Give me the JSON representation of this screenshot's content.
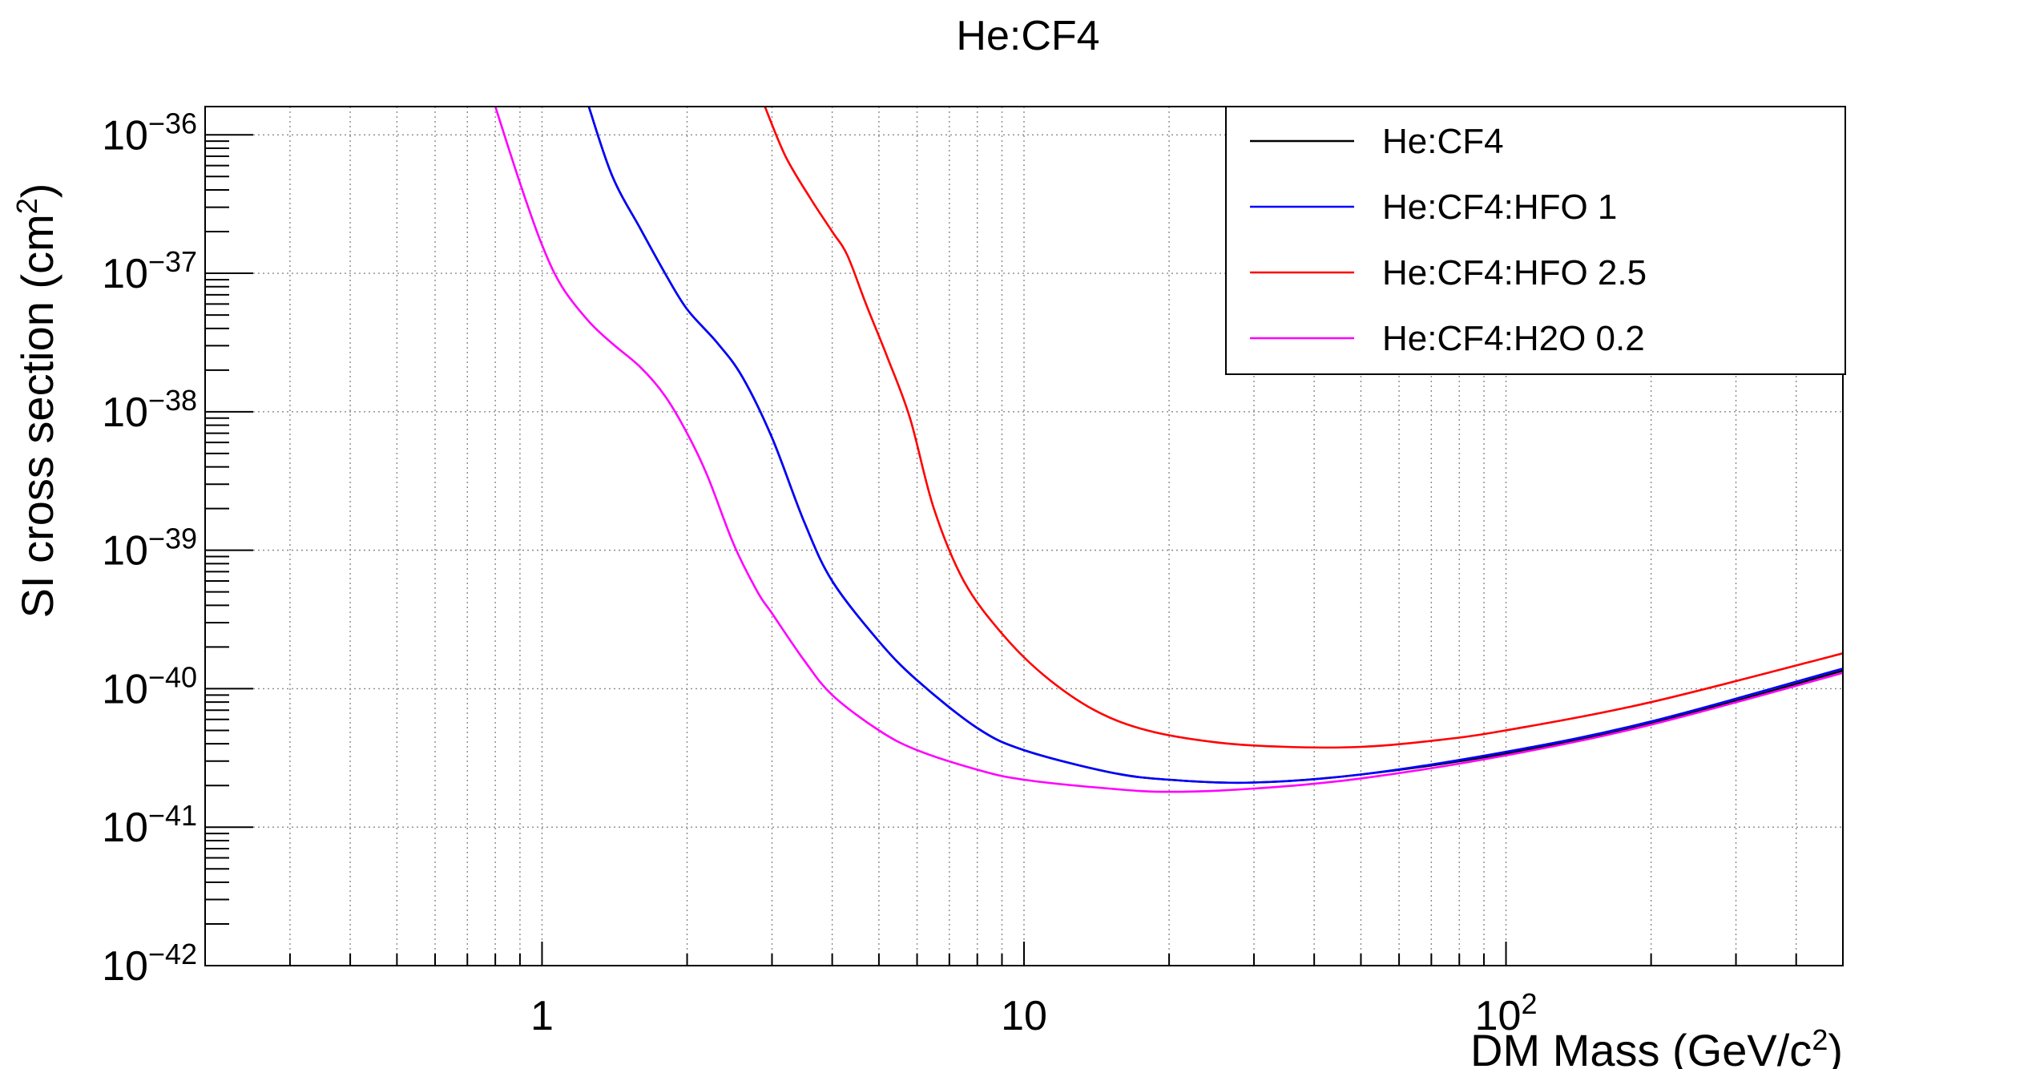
{
  "chart_data": {
    "type": "line",
    "title": "He:CF4",
    "xlabel": "DM Mass (GeV/c²)",
    "ylabel": "SI cross section (cm²)",
    "xscale": "log",
    "yscale": "log",
    "xlim": [
      0.2,
      500
    ],
    "ylim": [
      1e-42,
      1.6e-36
    ],
    "grid": true,
    "legend_position": "top-right",
    "x_ticks": [
      {
        "value": 1,
        "label": "1"
      },
      {
        "value": 10,
        "label": "10"
      },
      {
        "value": 100,
        "label": "10",
        "sup": "2"
      }
    ],
    "y_ticks": [
      {
        "value": 1e-42,
        "label": "10",
        "sup": "−42"
      },
      {
        "value": 1e-41,
        "label": "10",
        "sup": "−41"
      },
      {
        "value": 1e-40,
        "label": "10",
        "sup": "−40"
      },
      {
        "value": 1e-39,
        "label": "10",
        "sup": "−39"
      },
      {
        "value": 1e-38,
        "label": "10",
        "sup": "−38"
      },
      {
        "value": 1e-37,
        "label": "10",
        "sup": "−37"
      },
      {
        "value": 1e-36,
        "label": "10",
        "sup": "−36"
      }
    ],
    "series": [
      {
        "name": "He:CF4",
        "color": "#000000",
        "x": [
          1.25,
          1.4,
          1.6,
          1.8,
          2.0,
          2.3,
          2.6,
          3.0,
          3.5,
          4.0,
          5.0,
          6.0,
          8.0,
          10,
          15,
          20,
          30,
          50,
          100,
          200,
          500
        ],
        "y": [
          1.6e-36,
          5e-37,
          2.1e-37,
          1e-37,
          5.5e-38,
          3.2e-38,
          1.8e-38,
          6.5e-39,
          1.6e-39,
          6e-40,
          2.2e-40,
          1.15e-40,
          5.2e-41,
          3.6e-41,
          2.5e-41,
          2.2e-41,
          2.1e-41,
          2.4e-41,
          3.4e-41,
          5.6e-41,
          1.35e-40
        ]
      },
      {
        "name": "He:CF4:HFO 1",
        "color": "#0000ff",
        "x": [
          1.25,
          1.4,
          1.6,
          1.8,
          2.0,
          2.3,
          2.6,
          3.0,
          3.5,
          4.0,
          5.0,
          6.0,
          8.0,
          10,
          15,
          20,
          30,
          50,
          100,
          200,
          500
        ],
        "y": [
          1.6e-36,
          5e-37,
          2.1e-37,
          1e-37,
          5.5e-38,
          3.2e-38,
          1.8e-38,
          6.5e-39,
          1.6e-39,
          6e-40,
          2.2e-40,
          1.15e-40,
          5.2e-41,
          3.6e-41,
          2.5e-41,
          2.2e-41,
          2.1e-41,
          2.4e-41,
          3.5e-41,
          5.8e-41,
          1.4e-40
        ]
      },
      {
        "name": "He:CF4:HFO 2.5",
        "color": "#ff0000",
        "x": [
          2.9,
          3.2,
          3.6,
          4.0,
          4.3,
          4.7,
          5.2,
          5.8,
          6.5,
          7.5,
          9.0,
          11,
          14,
          18,
          25,
          35,
          50,
          70,
          100,
          200,
          500
        ],
        "y": [
          1.6e-36,
          7e-37,
          3.5e-37,
          2e-37,
          1.35e-37,
          6e-38,
          2.5e-38,
          9e-39,
          2e-39,
          6e-40,
          2.5e-40,
          1.25e-40,
          7e-41,
          5e-41,
          4.1e-41,
          3.8e-41,
          3.8e-41,
          4.2e-41,
          5e-41,
          8e-41,
          1.8e-40
        ]
      },
      {
        "name": "He:CF4:H2O 0.2",
        "color": "#ff00ff",
        "x": [
          0.8,
          0.9,
          1.0,
          1.1,
          1.25,
          1.4,
          1.6,
          1.8,
          2.0,
          2.2,
          2.5,
          2.8,
          3.0,
          3.5,
          4.0,
          5.0,
          6.0,
          8.0,
          10,
          15,
          20,
          30,
          50,
          100,
          200,
          500
        ],
        "y": [
          1.6e-36,
          4.5e-37,
          1.6e-37,
          8e-38,
          4.5e-38,
          3.1e-38,
          2.1e-38,
          1.3e-38,
          7e-39,
          3.5e-39,
          1.1e-39,
          5e-40,
          3.5e-40,
          1.6e-40,
          9e-41,
          5e-41,
          3.6e-41,
          2.6e-41,
          2.2e-41,
          1.9e-41,
          1.8e-41,
          1.9e-41,
          2.25e-41,
          3.3e-41,
          5.5e-41,
          1.3e-40
        ]
      }
    ]
  }
}
